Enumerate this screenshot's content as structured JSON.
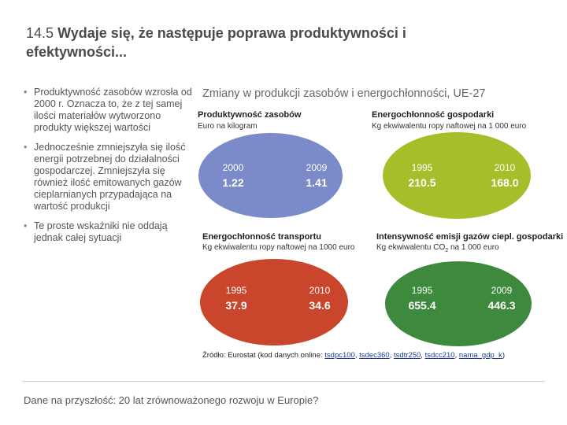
{
  "slide": {
    "title_number": "14.5",
    "title_line1": "Wydaje się, że następuje poprawa produktywności i",
    "title_line2": "efektywności..."
  },
  "bullets": [
    "Produktywność zasobów wzrosła od 2000 r. Oznacza to, że z tej samej ilości materiałów wytworzono produkty większej wartości",
    "Jednocześnie zmniejszyła się ilość energii potrzebnej do działalności gospodarczej. Zmniejszyła się również ilość emitowanych gazów cieplarnianych przypadająca na wartość produkcji",
    "Te proste wskaźniki nie oddają jednak całej sytuacji"
  ],
  "chart": {
    "title": "Zmiany w produkcji zasobów i energochłonności, UE-27",
    "panels": [
      {
        "title": "Produktywność zasobów",
        "unit": "Euro na kilogram",
        "color": "#7b8ac8",
        "items": [
          {
            "year": "2000",
            "value": "1.22"
          },
          {
            "year": "2009",
            "value": "1.41"
          }
        ]
      },
      {
        "title": "Energochłonność gospodarki",
        "unit": "Kg ekwiwalentu ropy naftowej na 1 000 euro",
        "color": "#a6be2a",
        "items": [
          {
            "year": "1995",
            "value": "210.5"
          },
          {
            "year": "2010",
            "value": "168.0"
          }
        ]
      },
      {
        "title": "Energochłonność transportu",
        "unit": "Kg ekwiwalentu ropy naftowej na 1000 euro",
        "color": "#c9452b",
        "items": [
          {
            "year": "1995",
            "value": "37.9"
          },
          {
            "year": "2010",
            "value": "34.6"
          }
        ]
      },
      {
        "title": "Intensywność emisji gazów ciepl. gospodarki",
        "unit_pre": "Kg ekwiwalentu CO",
        "unit_sub": "2",
        "unit_post": " na 1 000 euro",
        "color": "#3d8a3e",
        "items": [
          {
            "year": "1995",
            "value": "655.4"
          },
          {
            "year": "2009",
            "value": "446.3"
          }
        ]
      }
    ]
  },
  "source": {
    "label": "Źródło: Eurostat (kod danych online: ",
    "codes": [
      "tsdpc100",
      "tsdec360",
      "tsdtr250",
      "tsdcc210",
      "nama_gdp_k"
    ],
    "sep": ", ",
    "close": ")"
  },
  "footer": "Dane na przyszłość: 20 lat zrównoważonego rozwoju w Europie?"
}
